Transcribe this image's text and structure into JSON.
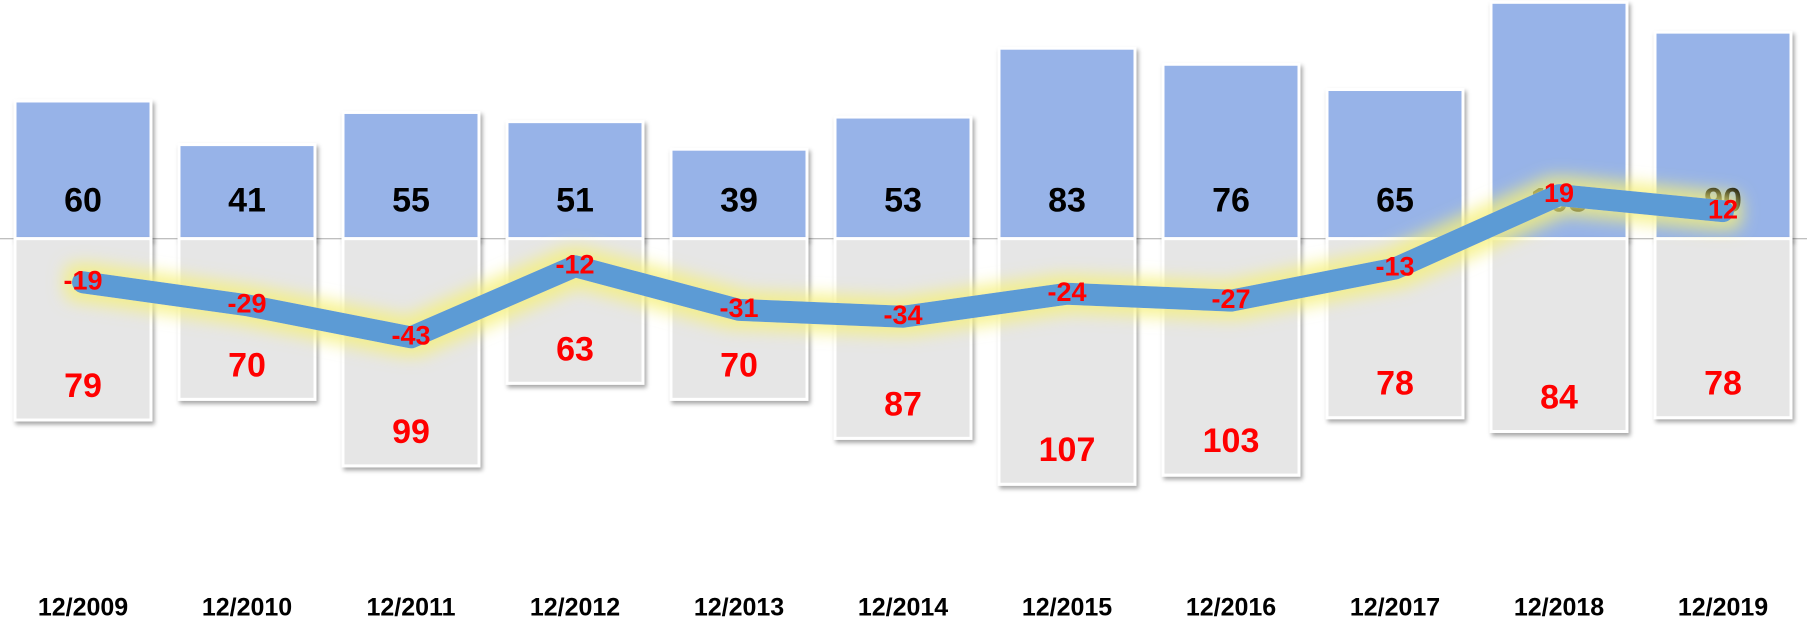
{
  "chart_data": {
    "type": "bar",
    "categories": [
      "12/2009",
      "12/2010",
      "12/2011",
      "12/2012",
      "12/2013",
      "12/2014",
      "12/2015",
      "12/2016",
      "12/2017",
      "12/2018",
      "12/2019"
    ],
    "series": [
      {
        "color": "#97b3e8",
        "label_color": "#000000",
        "values": [
          60,
          41,
          55,
          51,
          39,
          53,
          83,
          76,
          65,
          103,
          90
        ]
      },
      {
        "color": "#e6e6e6",
        "label_color": "#ff0000",
        "values": [
          -79,
          -70,
          -99,
          -63,
          -70,
          -87,
          -107,
          -103,
          -78,
          -84,
          -78
        ],
        "value_labels": [
          "79",
          "70",
          "99",
          "63",
          "70",
          "87",
          "107",
          "103",
          "78",
          "84",
          "78"
        ]
      },
      {
        "type": "line",
        "color": "#5b9bd5",
        "label_color": "#ff0000",
        "values": [
          -19,
          -29,
          -43,
          -12,
          -31,
          -34,
          -24,
          -27,
          -13,
          19,
          12
        ]
      }
    ],
    "ylim": [
      -140,
      104
    ]
  }
}
